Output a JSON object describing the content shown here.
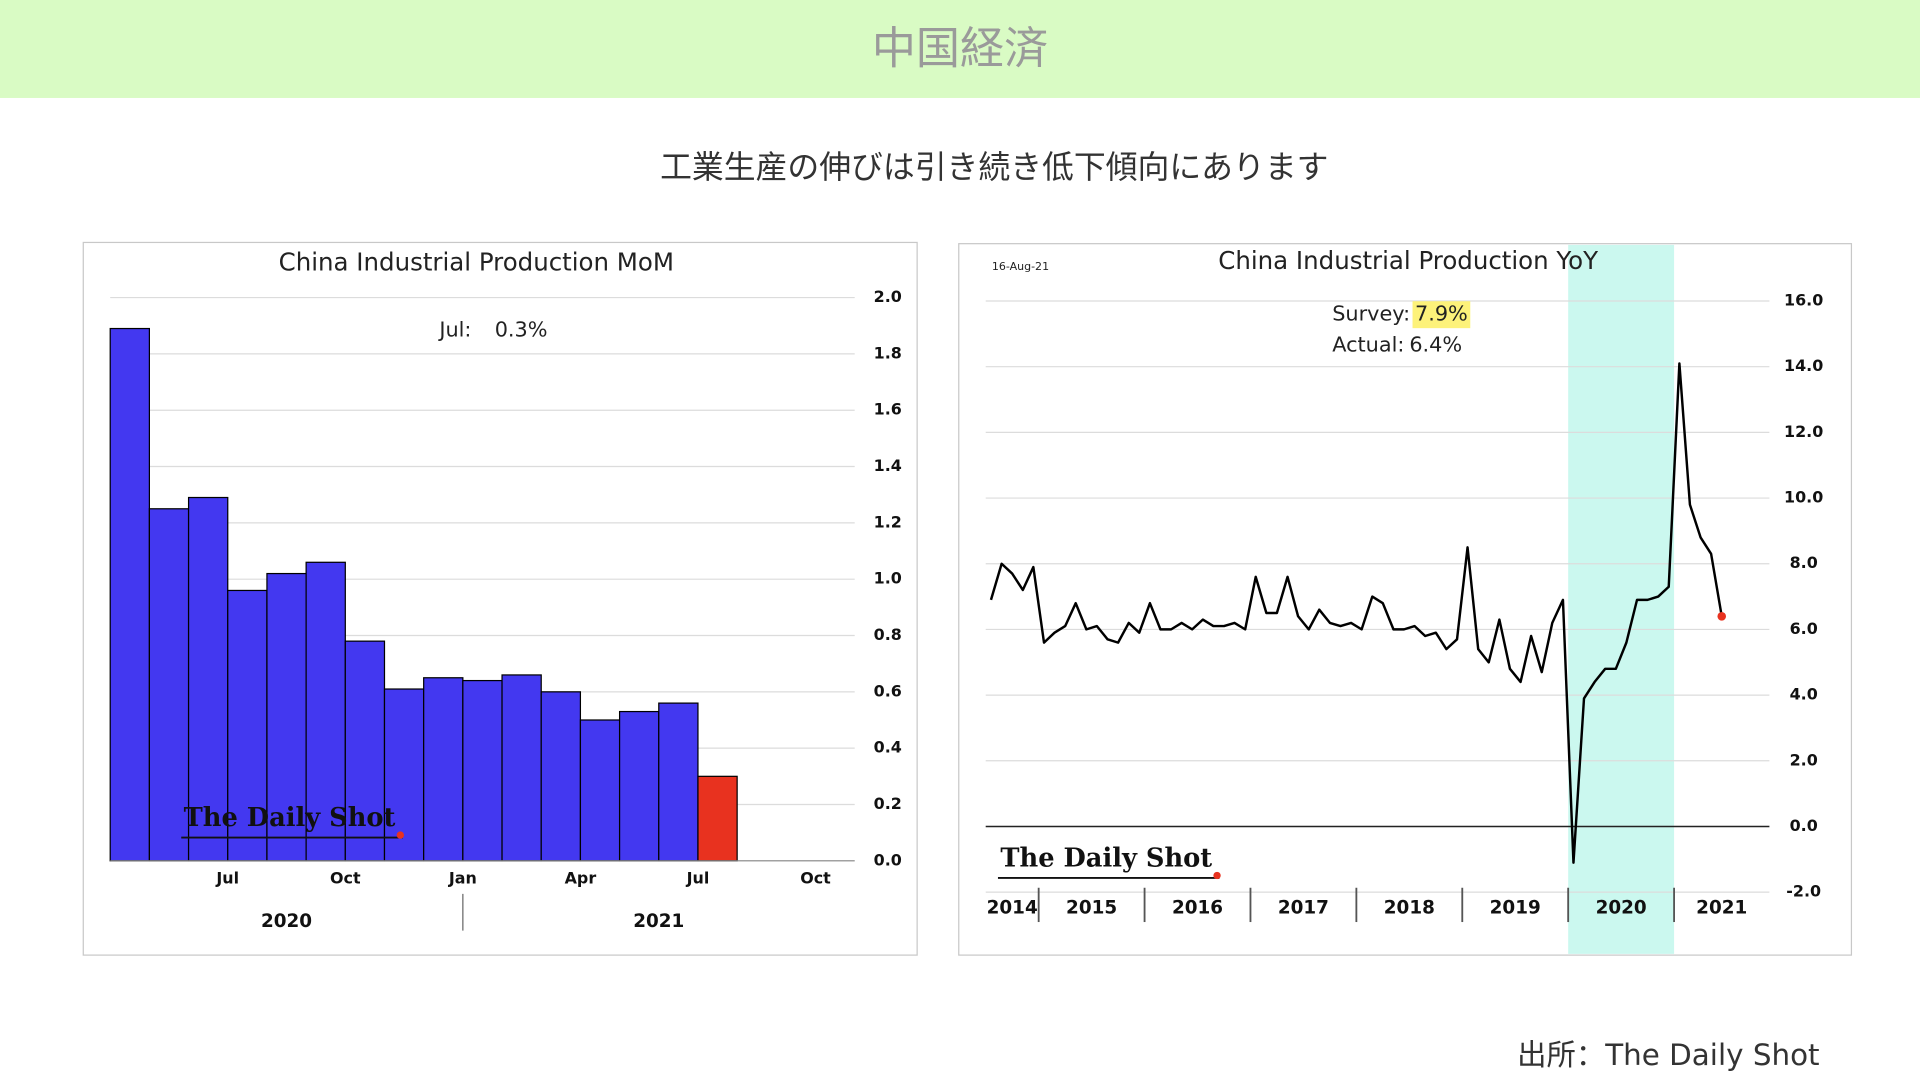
{
  "header": {
    "title": "中国経済"
  },
  "subtitle": "工業生産の伸びは引き続き低下傾向にあります",
  "source": "出所：The Daily Shot",
  "chart_data": [
    {
      "type": "bar",
      "title": "China Industrial Production MoM",
      "categories": [
        null,
        null,
        null,
        "Jul",
        null,
        null,
        "Oct",
        null,
        null,
        "Jan",
        null,
        null,
        "Apr",
        null,
        null,
        "Jul",
        null,
        null,
        "Oct"
      ],
      "values": [
        1.89,
        1.25,
        1.29,
        0.96,
        1.02,
        1.06,
        0.78,
        0.61,
        0.65,
        0.64,
        0.66,
        0.6,
        0.5,
        0.53,
        0.56,
        0.3,
        null,
        null,
        null
      ],
      "colors": [
        "#4338f0",
        "#4338f0",
        "#4338f0",
        "#4338f0",
        "#4338f0",
        "#4338f0",
        "#4338f0",
        "#4338f0",
        "#4338f0",
        "#4338f0",
        "#4338f0",
        "#4338f0",
        "#4338f0",
        "#4338f0",
        "#4338f0",
        "#e8321f",
        null,
        null,
        null
      ],
      "year_labels": [
        2020,
        2021
      ],
      "ylim": [
        0,
        2
      ],
      "yticks": [
        {
          "value": 0,
          "label": "0.0"
        },
        0.2,
        0.4,
        0.6,
        0.8,
        {
          "value": 1,
          "label": "1.0"
        },
        1.2,
        1.4,
        1.6,
        1.8,
        {
          "value": 2,
          "label": "2.0"
        }
      ],
      "grid": true,
      "annotations": [
        {
          "label": "Jul:",
          "value": "0.3%"
        }
      ],
      "watermark": "The Daily Shot"
    },
    {
      "type": "line",
      "title": "China Industrial Production YoY",
      "date": "16-Aug-21",
      "x": [
        2014.55,
        2014.65,
        2014.75,
        2014.85,
        2014.95,
        2015.05,
        2015.15,
        2015.25,
        2015.35,
        2015.45,
        2015.55,
        2015.65,
        2015.75,
        2015.85,
        2015.95,
        2016.05,
        2016.15,
        2016.25,
        2016.35,
        2016.45,
        2016.55,
        2016.65,
        2016.75,
        2016.85,
        2016.95,
        2017.05,
        2017.15,
        2017.25,
        2017.35,
        2017.45,
        2017.55,
        2017.65,
        2017.75,
        2017.85,
        2017.95,
        2018.05,
        2018.15,
        2018.25,
        2018.35,
        2018.45,
        2018.55,
        2018.65,
        2018.75,
        2018.85,
        2018.95,
        2019.05,
        2019.15,
        2019.25,
        2019.35,
        2019.45,
        2019.55,
        2019.65,
        2019.75,
        2019.85,
        2019.95,
        2020.05,
        2020.15,
        2020.25,
        2020.35,
        2020.45,
        2020.55,
        2020.65,
        2020.75,
        2020.85,
        2020.95,
        2021.05,
        2021.15,
        2021.25,
        2021.35,
        2021.45
      ],
      "values": [
        6.9,
        8.0,
        7.7,
        7.2,
        7.9,
        5.6,
        5.9,
        6.1,
        6.8,
        6.0,
        6.1,
        5.7,
        5.6,
        6.2,
        5.9,
        6.8,
        6.0,
        6.0,
        6.2,
        6.0,
        6.3,
        6.1,
        6.1,
        6.2,
        6.0,
        7.6,
        6.5,
        6.5,
        7.6,
        6.4,
        6.0,
        6.6,
        6.2,
        6.1,
        6.2,
        6.0,
        7.0,
        6.8,
        6.0,
        6.0,
        6.1,
        5.8,
        5.9,
        5.4,
        5.7,
        8.5,
        5.4,
        5.0,
        6.3,
        4.8,
        4.4,
        5.8,
        4.7,
        6.2,
        6.9,
        -1.1,
        3.9,
        4.4,
        4.8,
        4.8,
        5.6,
        6.9,
        6.9,
        7.0,
        7.3,
        14.1,
        9.8,
        8.8,
        8.3,
        6.4
      ],
      "color": "#000000",
      "marker_color": "#e8321f",
      "shade": {
        "x": [
          2020,
          2021
        ],
        "color": "#cbf8ef"
      },
      "xlim": [
        2014.5,
        2021.9
      ],
      "xticks": [
        2015,
        2016,
        2017,
        2018,
        2019,
        2020,
        2021
      ],
      "year_labels": [
        2014,
        2015,
        2016,
        2017,
        2018,
        2019,
        2020,
        2021
      ],
      "ylim": [
        -2,
        17
      ],
      "yticks": [
        {
          "value": -2,
          "label": "-2.0"
        },
        {
          "value": 0,
          "label": "0.0"
        },
        {
          "value": 2,
          "label": "2.0"
        },
        {
          "value": 4,
          "label": "4.0"
        },
        {
          "value": 6,
          "label": "6.0"
        },
        {
          "value": 8,
          "label": "8.0"
        },
        {
          "value": 10,
          "label": "10.0"
        },
        {
          "value": 12,
          "label": "12.0"
        },
        {
          "value": 14,
          "label": "14.0"
        },
        {
          "value": 16,
          "label": "16.0"
        }
      ],
      "grid": true,
      "annotations": [
        {
          "label": "Survey:",
          "value": "7.9%"
        },
        {
          "label": "Actual:",
          "value": "6.4%"
        }
      ],
      "highlight_color": "#fdf27a",
      "watermark": "The Daily Shot"
    }
  ]
}
